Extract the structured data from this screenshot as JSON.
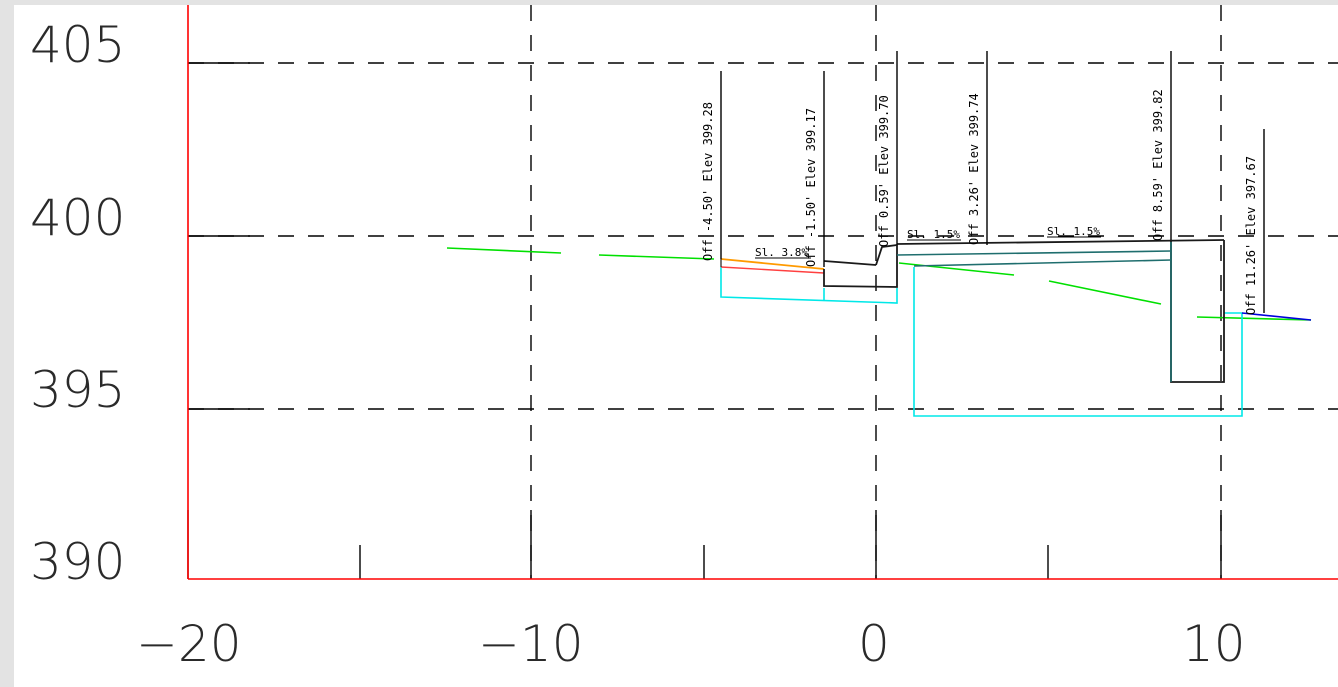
{
  "axes": {
    "y_ticks": [
      {
        "label": "405",
        "value": 405
      },
      {
        "label": "400",
        "value": 400
      },
      {
        "label": "395",
        "value": 395
      },
      {
        "label": "390",
        "value": 390
      }
    ],
    "x_ticks": [
      {
        "label": "−20",
        "value": -20
      },
      {
        "label": "−10",
        "value": -10
      },
      {
        "label": "0",
        "value": 0
      },
      {
        "label": "10",
        "value": 10
      }
    ]
  },
  "labels": {
    "l1": "Off -4.50' Elev 399.28",
    "l2": "Off -1.50' Elev 399.17",
    "l3": "Off 0.59' Elev 399.70",
    "l4": "Off 3.26' Elev 399.74",
    "l5": "Off 8.59' Elev 399.82",
    "l6": "Off 11.26' Elev 397.67"
  },
  "slopes": {
    "s1": "Sl. 3.8%",
    "s2": "Sl. 1.5%",
    "s3": "Sl. 1.5%"
  },
  "colors": {
    "axis_red": "#ff0000",
    "ground_green": "#00e000",
    "subgrade_cyan": "#00e8e8",
    "section_dark": "#1a1a1a",
    "teal": "#1f6e6e",
    "blue": "#0000dd",
    "orange": "#ff9a00"
  }
}
